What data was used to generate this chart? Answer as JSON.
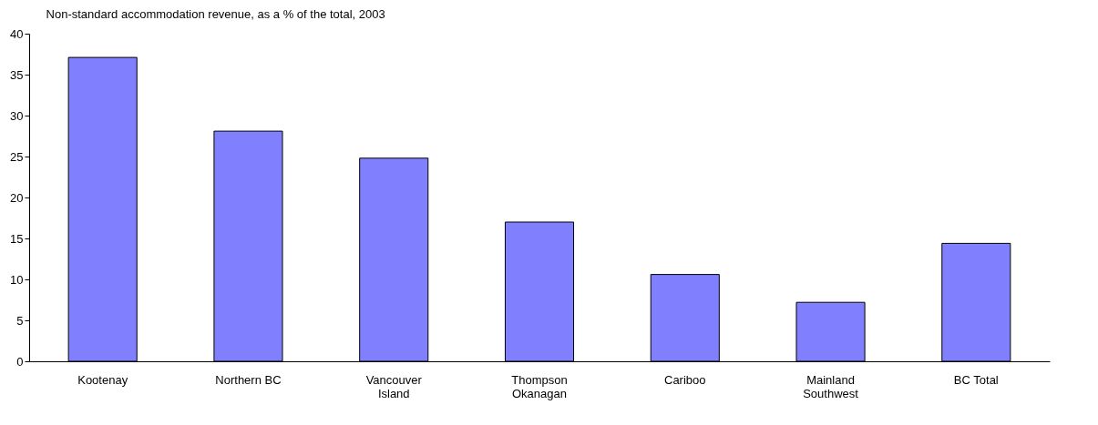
{
  "chart_data": {
    "type": "bar",
    "title": "Non-standard accommodation revenue, as a % of the total, 2003",
    "categories": [
      "Kootenay",
      "Northern BC",
      "Vancouver\nIsland",
      "Thompson\nOkanagan",
      "Cariboo",
      "Mainland\nSouthwest",
      "BC Total"
    ],
    "values": [
      37.1,
      28.1,
      24.8,
      17.0,
      10.6,
      7.2,
      14.4
    ],
    "color": "#8080ff",
    "ylim": [
      0,
      40
    ],
    "yticks": [
      0,
      5,
      10,
      15,
      20,
      25,
      30,
      35,
      40
    ],
    "grid": false
  }
}
